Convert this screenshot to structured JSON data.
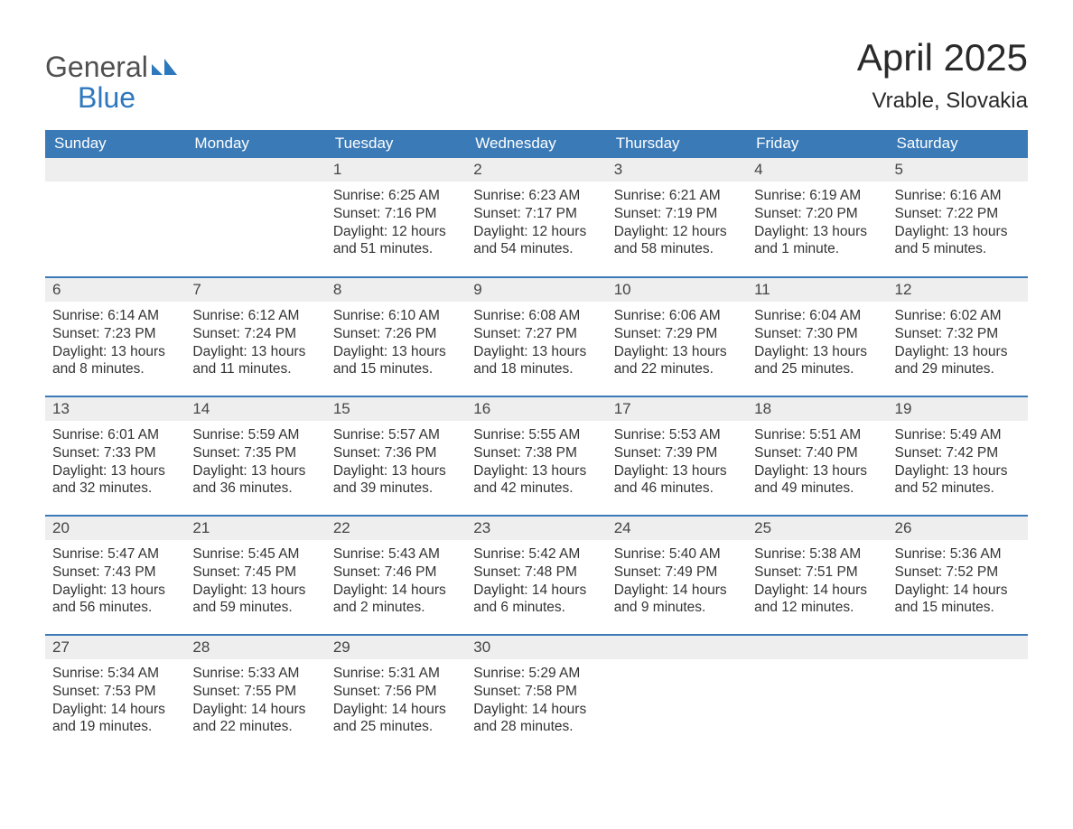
{
  "brand": {
    "word1": "General",
    "word2": "Blue",
    "color_general": "#505050",
    "color_blue": "#2e78bd",
    "mark_color": "#2e78bd"
  },
  "header": {
    "month_title": "April 2025",
    "location": "Vrable, Slovakia"
  },
  "colors": {
    "header_bg": "#3a7ab7",
    "header_text": "#ffffff",
    "daynum_bg": "#eeeeee",
    "rule": "#3a7ab7",
    "text": "#333333",
    "page_bg": "#ffffff"
  },
  "day_headers": [
    "Sunday",
    "Monday",
    "Tuesday",
    "Wednesday",
    "Thursday",
    "Friday",
    "Saturday"
  ],
  "weeks": [
    [
      null,
      null,
      {
        "n": "1",
        "sunrise": "Sunrise: 6:25 AM",
        "sunset": "Sunset: 7:16 PM",
        "dl1": "Daylight: 12 hours",
        "dl2": "and 51 minutes."
      },
      {
        "n": "2",
        "sunrise": "Sunrise: 6:23 AM",
        "sunset": "Sunset: 7:17 PM",
        "dl1": "Daylight: 12 hours",
        "dl2": "and 54 minutes."
      },
      {
        "n": "3",
        "sunrise": "Sunrise: 6:21 AM",
        "sunset": "Sunset: 7:19 PM",
        "dl1": "Daylight: 12 hours",
        "dl2": "and 58 minutes."
      },
      {
        "n": "4",
        "sunrise": "Sunrise: 6:19 AM",
        "sunset": "Sunset: 7:20 PM",
        "dl1": "Daylight: 13 hours",
        "dl2": "and 1 minute."
      },
      {
        "n": "5",
        "sunrise": "Sunrise: 6:16 AM",
        "sunset": "Sunset: 7:22 PM",
        "dl1": "Daylight: 13 hours",
        "dl2": "and 5 minutes."
      }
    ],
    [
      {
        "n": "6",
        "sunrise": "Sunrise: 6:14 AM",
        "sunset": "Sunset: 7:23 PM",
        "dl1": "Daylight: 13 hours",
        "dl2": "and 8 minutes."
      },
      {
        "n": "7",
        "sunrise": "Sunrise: 6:12 AM",
        "sunset": "Sunset: 7:24 PM",
        "dl1": "Daylight: 13 hours",
        "dl2": "and 11 minutes."
      },
      {
        "n": "8",
        "sunrise": "Sunrise: 6:10 AM",
        "sunset": "Sunset: 7:26 PM",
        "dl1": "Daylight: 13 hours",
        "dl2": "and 15 minutes."
      },
      {
        "n": "9",
        "sunrise": "Sunrise: 6:08 AM",
        "sunset": "Sunset: 7:27 PM",
        "dl1": "Daylight: 13 hours",
        "dl2": "and 18 minutes."
      },
      {
        "n": "10",
        "sunrise": "Sunrise: 6:06 AM",
        "sunset": "Sunset: 7:29 PM",
        "dl1": "Daylight: 13 hours",
        "dl2": "and 22 minutes."
      },
      {
        "n": "11",
        "sunrise": "Sunrise: 6:04 AM",
        "sunset": "Sunset: 7:30 PM",
        "dl1": "Daylight: 13 hours",
        "dl2": "and 25 minutes."
      },
      {
        "n": "12",
        "sunrise": "Sunrise: 6:02 AM",
        "sunset": "Sunset: 7:32 PM",
        "dl1": "Daylight: 13 hours",
        "dl2": "and 29 minutes."
      }
    ],
    [
      {
        "n": "13",
        "sunrise": "Sunrise: 6:01 AM",
        "sunset": "Sunset: 7:33 PM",
        "dl1": "Daylight: 13 hours",
        "dl2": "and 32 minutes."
      },
      {
        "n": "14",
        "sunrise": "Sunrise: 5:59 AM",
        "sunset": "Sunset: 7:35 PM",
        "dl1": "Daylight: 13 hours",
        "dl2": "and 36 minutes."
      },
      {
        "n": "15",
        "sunrise": "Sunrise: 5:57 AM",
        "sunset": "Sunset: 7:36 PM",
        "dl1": "Daylight: 13 hours",
        "dl2": "and 39 minutes."
      },
      {
        "n": "16",
        "sunrise": "Sunrise: 5:55 AM",
        "sunset": "Sunset: 7:38 PM",
        "dl1": "Daylight: 13 hours",
        "dl2": "and 42 minutes."
      },
      {
        "n": "17",
        "sunrise": "Sunrise: 5:53 AM",
        "sunset": "Sunset: 7:39 PM",
        "dl1": "Daylight: 13 hours",
        "dl2": "and 46 minutes."
      },
      {
        "n": "18",
        "sunrise": "Sunrise: 5:51 AM",
        "sunset": "Sunset: 7:40 PM",
        "dl1": "Daylight: 13 hours",
        "dl2": "and 49 minutes."
      },
      {
        "n": "19",
        "sunrise": "Sunrise: 5:49 AM",
        "sunset": "Sunset: 7:42 PM",
        "dl1": "Daylight: 13 hours",
        "dl2": "and 52 minutes."
      }
    ],
    [
      {
        "n": "20",
        "sunrise": "Sunrise: 5:47 AM",
        "sunset": "Sunset: 7:43 PM",
        "dl1": "Daylight: 13 hours",
        "dl2": "and 56 minutes."
      },
      {
        "n": "21",
        "sunrise": "Sunrise: 5:45 AM",
        "sunset": "Sunset: 7:45 PM",
        "dl1": "Daylight: 13 hours",
        "dl2": "and 59 minutes."
      },
      {
        "n": "22",
        "sunrise": "Sunrise: 5:43 AM",
        "sunset": "Sunset: 7:46 PM",
        "dl1": "Daylight: 14 hours",
        "dl2": "and 2 minutes."
      },
      {
        "n": "23",
        "sunrise": "Sunrise: 5:42 AM",
        "sunset": "Sunset: 7:48 PM",
        "dl1": "Daylight: 14 hours",
        "dl2": "and 6 minutes."
      },
      {
        "n": "24",
        "sunrise": "Sunrise: 5:40 AM",
        "sunset": "Sunset: 7:49 PM",
        "dl1": "Daylight: 14 hours",
        "dl2": "and 9 minutes."
      },
      {
        "n": "25",
        "sunrise": "Sunrise: 5:38 AM",
        "sunset": "Sunset: 7:51 PM",
        "dl1": "Daylight: 14 hours",
        "dl2": "and 12 minutes."
      },
      {
        "n": "26",
        "sunrise": "Sunrise: 5:36 AM",
        "sunset": "Sunset: 7:52 PM",
        "dl1": "Daylight: 14 hours",
        "dl2": "and 15 minutes."
      }
    ],
    [
      {
        "n": "27",
        "sunrise": "Sunrise: 5:34 AM",
        "sunset": "Sunset: 7:53 PM",
        "dl1": "Daylight: 14 hours",
        "dl2": "and 19 minutes."
      },
      {
        "n": "28",
        "sunrise": "Sunrise: 5:33 AM",
        "sunset": "Sunset: 7:55 PM",
        "dl1": "Daylight: 14 hours",
        "dl2": "and 22 minutes."
      },
      {
        "n": "29",
        "sunrise": "Sunrise: 5:31 AM",
        "sunset": "Sunset: 7:56 PM",
        "dl1": "Daylight: 14 hours",
        "dl2": "and 25 minutes."
      },
      {
        "n": "30",
        "sunrise": "Sunrise: 5:29 AM",
        "sunset": "Sunset: 7:58 PM",
        "dl1": "Daylight: 14 hours",
        "dl2": "and 28 minutes."
      },
      null,
      null,
      null
    ]
  ]
}
